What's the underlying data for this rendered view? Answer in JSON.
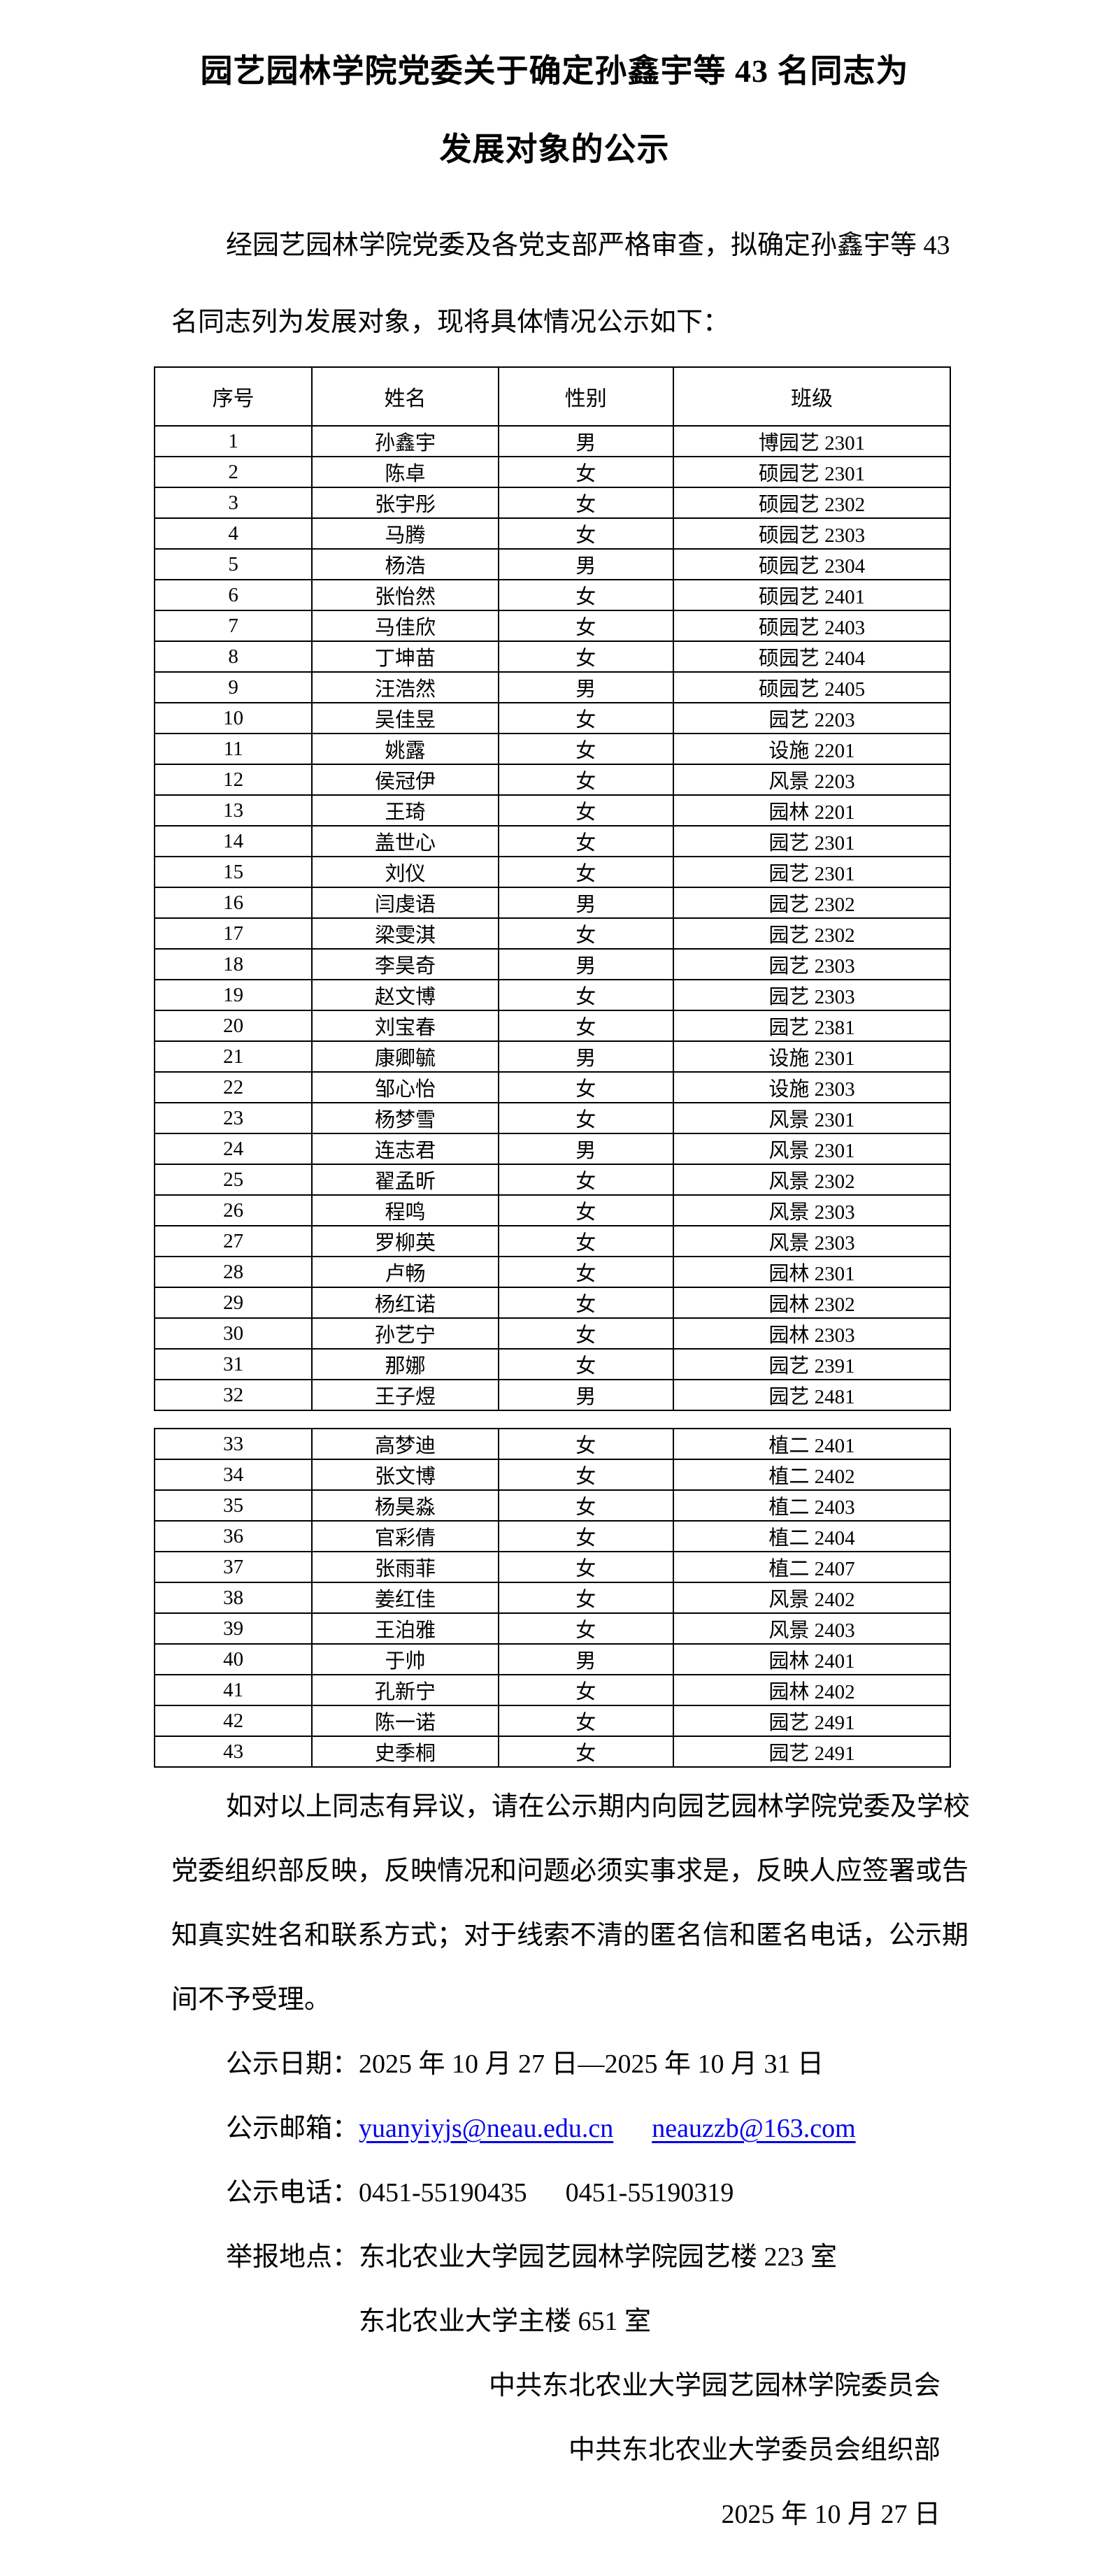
{
  "document": {
    "title_line1": "园艺园林学院党委关于确定孙鑫宇等 43 名同志为",
    "title_line2": "发展对象的公示",
    "intro_line1": "经园艺园林学院党委及各党支部严格审查，拟确定孙鑫宇等 43",
    "intro_line2": "名同志列为发展对象，现将具体情况公示如下："
  },
  "table": {
    "headers": [
      "序号",
      "姓名",
      "性别",
      "班级"
    ],
    "section1_rows": [
      [
        "1",
        "孙鑫宇",
        "男",
        "博园艺 2301"
      ],
      [
        "2",
        "陈卓",
        "女",
        "硕园艺 2301"
      ],
      [
        "3",
        "张宇彤",
        "女",
        "硕园艺 2302"
      ],
      [
        "4",
        "马腾",
        "女",
        "硕园艺 2303"
      ],
      [
        "5",
        "杨浩",
        "男",
        "硕园艺 2304"
      ],
      [
        "6",
        "张怡然",
        "女",
        "硕园艺 2401"
      ],
      [
        "7",
        "马佳欣",
        "女",
        "硕园艺 2403"
      ],
      [
        "8",
        "丁坤苗",
        "女",
        "硕园艺 2404"
      ],
      [
        "9",
        "汪浩然",
        "男",
        "硕园艺 2405"
      ],
      [
        "10",
        "吴佳昱",
        "女",
        "园艺 2203"
      ],
      [
        "11",
        "姚露",
        "女",
        "设施 2201"
      ],
      [
        "12",
        "侯冠伊",
        "女",
        "风景 2203"
      ],
      [
        "13",
        "王琦",
        "女",
        "园林 2201"
      ],
      [
        "14",
        "盖世心",
        "女",
        "园艺 2301"
      ],
      [
        "15",
        "刘仪",
        "女",
        "园艺 2301"
      ],
      [
        "16",
        "闫虔语",
        "男",
        "园艺 2302"
      ],
      [
        "17",
        "梁雯淇",
        "女",
        "园艺 2302"
      ],
      [
        "18",
        "李昊奇",
        "男",
        "园艺 2303"
      ],
      [
        "19",
        "赵文博",
        "女",
        "园艺 2303"
      ],
      [
        "20",
        "刘宝春",
        "女",
        "园艺 2381"
      ],
      [
        "21",
        "康卿毓",
        "男",
        "设施 2301"
      ],
      [
        "22",
        "邹心怡",
        "女",
        "设施 2303"
      ],
      [
        "23",
        "杨梦雪",
        "女",
        "风景 2301"
      ],
      [
        "24",
        "连志君",
        "男",
        "风景 2301"
      ],
      [
        "25",
        "翟孟昕",
        "女",
        "风景 2302"
      ],
      [
        "26",
        "程鸣",
        "女",
        "风景 2303"
      ],
      [
        "27",
        "罗柳英",
        "女",
        "风景 2303"
      ],
      [
        "28",
        "卢畅",
        "女",
        "园林 2301"
      ],
      [
        "29",
        "杨红诺",
        "女",
        "园林 2302"
      ],
      [
        "30",
        "孙艺宁",
        "女",
        "园林 2303"
      ],
      [
        "31",
        "那娜",
        "女",
        "园艺 2391"
      ],
      [
        "32",
        "王子煜",
        "男",
        "园艺 2481"
      ]
    ],
    "section2_rows": [
      [
        "33",
        "高梦迪",
        "女",
        "植二 2401"
      ],
      [
        "34",
        "张文博",
        "女",
        "植二 2402"
      ],
      [
        "35",
        "杨昊淼",
        "女",
        "植二 2403"
      ],
      [
        "36",
        "官彩倩",
        "女",
        "植二 2404"
      ],
      [
        "37",
        "张雨菲",
        "女",
        "植二 2407"
      ],
      [
        "38",
        "姜红佳",
        "女",
        "风景 2402"
      ],
      [
        "39",
        "王泊雅",
        "女",
        "风景 2403"
      ],
      [
        "40",
        "于帅",
        "男",
        "园林 2401"
      ],
      [
        "41",
        "孔新宁",
        "女",
        "园林 2402"
      ],
      [
        "42",
        "陈一诺",
        "女",
        "园艺 2491"
      ],
      [
        "43",
        "史季桐",
        "女",
        "园艺 2491"
      ]
    ]
  },
  "closing": {
    "lines": [
      "如对以上同志有异议，请在公示期内向园艺园林学院党委及学校",
      "党委组织部反映，反映情况和问题必须实事求是，反映人应签署或告",
      "知真实姓名和联系方式；对于线索不清的匿名信和匿名电话，公示期",
      "间不予受理。"
    ]
  },
  "contact": {
    "date_label": "公示日期：",
    "date_value": "2025 年 10 月 27 日—2025 年 10 月 31 日",
    "email_label": "公示邮箱：",
    "email1": "yuanyiyjs@neau.edu.cn",
    "email2": "neauzzb@163.com",
    "phone_label": "公示电话：",
    "phone1": "0451-55190435",
    "phone2": "0451-55190319",
    "report_label": "举报地点：",
    "report_line1": "东北农业大学园艺园林学院园艺楼 223 室",
    "report_line2": "东北农业大学主楼 651 室"
  },
  "signature": {
    "line1": "中共东北农业大学园艺园林学院委员会",
    "line2": "中共东北农业大学委员会组织部",
    "date": "2025 年 10 月 27 日"
  },
  "colors": {
    "text": "#000000",
    "link": "#0000EE",
    "border": "#000000",
    "background": "#ffffff"
  }
}
